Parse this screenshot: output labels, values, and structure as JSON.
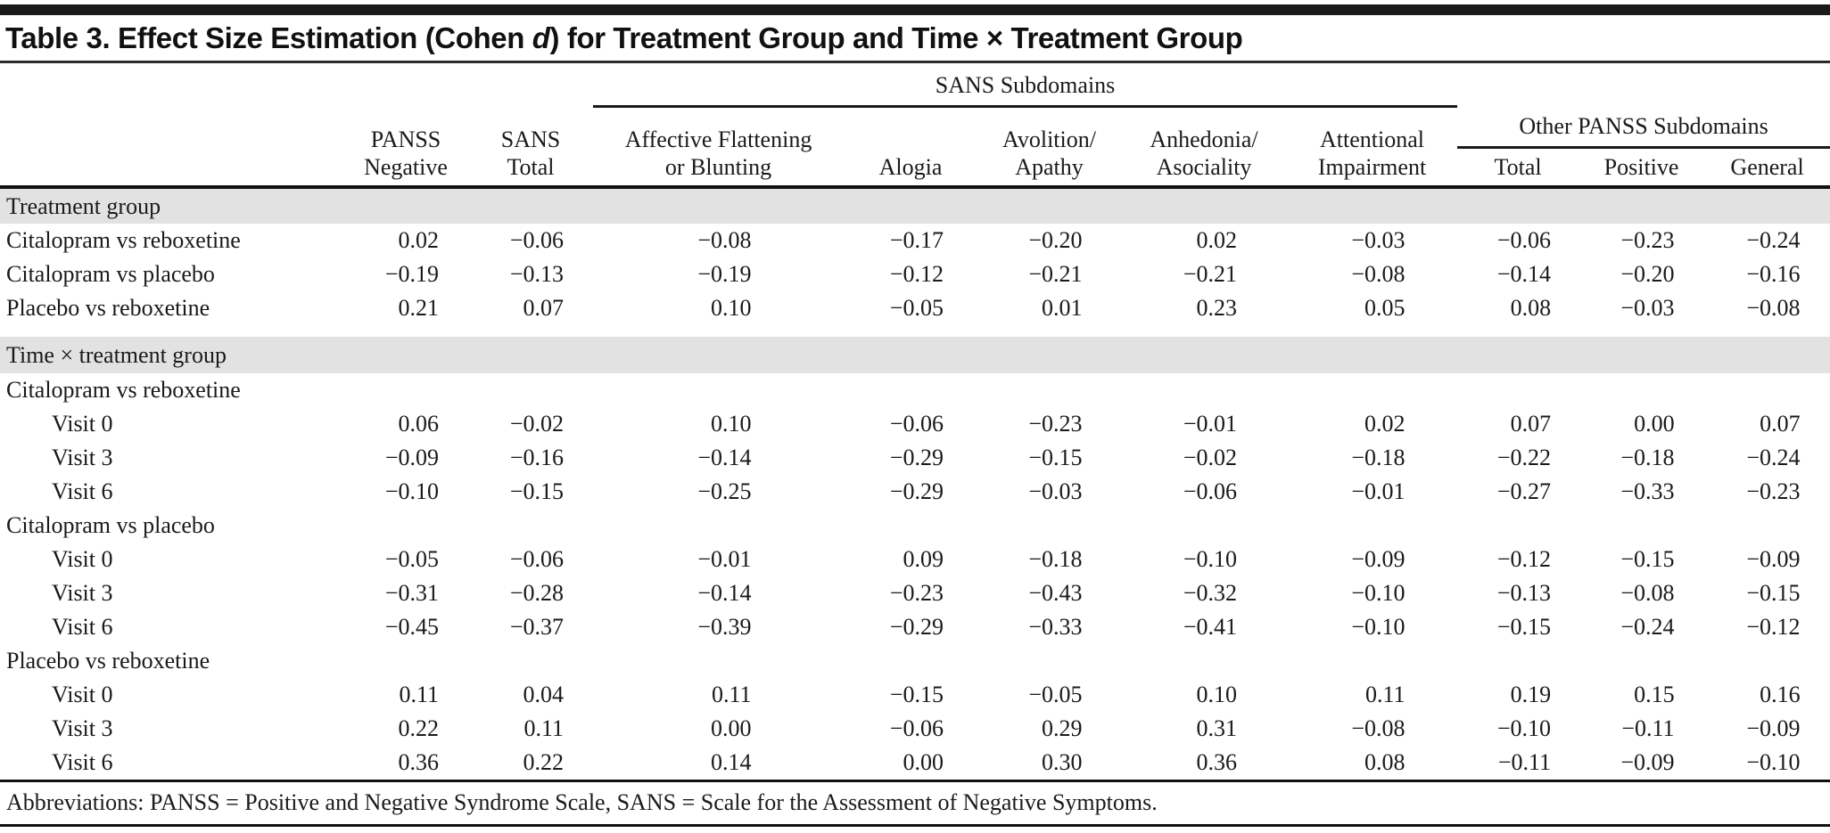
{
  "title": {
    "prefix": "Table 3. Effect Size Estimation (Cohen ",
    "emphasis": "d",
    "suffix": ") for Treatment Group and Time × Treatment Group"
  },
  "header": {
    "spanner_sans": "SANS Subdomains",
    "spanner_other_panss": "Other PANSS Subdomains",
    "columns": {
      "panss_negative": {
        "line1": "PANSS",
        "line2": "Negative"
      },
      "sans_total": {
        "line1": "SANS",
        "line2": "Total"
      },
      "affective_flattening": {
        "line1": "Affective Flattening",
        "line2": "or Blunting"
      },
      "alogia": {
        "line1": "Alogia"
      },
      "avolition_apathy": {
        "line1": "Avolition/",
        "line2": "Apathy"
      },
      "anhedonia_asociality": {
        "line1": "Anhedonia/",
        "line2": "Asociality"
      },
      "attentional_impairment": {
        "line1": "Attentional",
        "line2": "Impairment"
      },
      "other_total": "Total",
      "other_positive": "Positive",
      "other_general": "General"
    }
  },
  "table": {
    "rows": [
      {
        "type": "band",
        "label": "Treatment group"
      },
      {
        "type": "data",
        "indent": 0,
        "label": "Citalopram vs reboxetine",
        "values": [
          "0.02",
          "−0.06",
          "−0.08",
          "−0.17",
          "−0.20",
          "0.02",
          "−0.03",
          "−0.06",
          "−0.23",
          "−0.24"
        ]
      },
      {
        "type": "data",
        "indent": 0,
        "label": "Citalopram vs placebo",
        "values": [
          "−0.19",
          "−0.13",
          "−0.19",
          "−0.12",
          "−0.21",
          "−0.21",
          "−0.08",
          "−0.14",
          "−0.20",
          "−0.16"
        ]
      },
      {
        "type": "data",
        "indent": 0,
        "label": "Placebo vs reboxetine",
        "values": [
          "0.21",
          "0.07",
          "0.10",
          "−0.05",
          "0.01",
          "0.23",
          "0.05",
          "0.08",
          "−0.03",
          "−0.08"
        ]
      },
      {
        "type": "spacer"
      },
      {
        "type": "band",
        "label": "Time × treatment group"
      },
      {
        "type": "subhead",
        "label": "Citalopram vs reboxetine"
      },
      {
        "type": "data",
        "indent": 1,
        "label": "Visit 0",
        "values": [
          "0.06",
          "−0.02",
          "0.10",
          "−0.06",
          "−0.23",
          "−0.01",
          "0.02",
          "0.07",
          "0.00",
          "0.07"
        ]
      },
      {
        "type": "data",
        "indent": 1,
        "label": "Visit 3",
        "values": [
          "−0.09",
          "−0.16",
          "−0.14",
          "−0.29",
          "−0.15",
          "−0.02",
          "−0.18",
          "−0.22",
          "−0.18",
          "−0.24"
        ]
      },
      {
        "type": "data",
        "indent": 1,
        "label": "Visit 6",
        "values": [
          "−0.10",
          "−0.15",
          "−0.25",
          "−0.29",
          "−0.03",
          "−0.06",
          "−0.01",
          "−0.27",
          "−0.33",
          "−0.23"
        ]
      },
      {
        "type": "subhead",
        "label": "Citalopram vs placebo"
      },
      {
        "type": "data",
        "indent": 1,
        "label": "Visit 0",
        "values": [
          "−0.05",
          "−0.06",
          "−0.01",
          "0.09",
          "−0.18",
          "−0.10",
          "−0.09",
          "−0.12",
          "−0.15",
          "−0.09"
        ]
      },
      {
        "type": "data",
        "indent": 1,
        "label": "Visit 3",
        "values": [
          "−0.31",
          "−0.28",
          "−0.14",
          "−0.23",
          "−0.43",
          "−0.32",
          "−0.10",
          "−0.13",
          "−0.08",
          "−0.15"
        ]
      },
      {
        "type": "data",
        "indent": 1,
        "label": "Visit 6",
        "values": [
          "−0.45",
          "−0.37",
          "−0.39",
          "−0.29",
          "−0.33",
          "−0.41",
          "−0.10",
          "−0.15",
          "−0.24",
          "−0.12"
        ]
      },
      {
        "type": "subhead",
        "label": "Placebo vs reboxetine"
      },
      {
        "type": "data",
        "indent": 1,
        "label": "Visit 0",
        "values": [
          "0.11",
          "0.04",
          "0.11",
          "−0.15",
          "−0.05",
          "0.10",
          "0.11",
          "0.19",
          "0.15",
          "0.16"
        ]
      },
      {
        "type": "data",
        "indent": 1,
        "label": "Visit 3",
        "values": [
          "0.22",
          "0.11",
          "0.00",
          "−0.06",
          "0.29",
          "0.31",
          "−0.08",
          "−0.10",
          "−0.11",
          "−0.09"
        ]
      },
      {
        "type": "data",
        "indent": 1,
        "label": "Visit 6",
        "values": [
          "0.36",
          "0.22",
          "0.14",
          "0.00",
          "0.30",
          "0.36",
          "0.08",
          "−0.11",
          "−0.09",
          "−0.10"
        ]
      }
    ]
  },
  "footnote": "Abbreviations: PANSS = Positive and Negative Syndrome Scale, SANS = Scale for the Assessment of Negative Symptoms.",
  "colors": {
    "text": "#1a1a1a",
    "band_background": "#e2e2e2",
    "rule": "#111111",
    "background": "#ffffff"
  }
}
